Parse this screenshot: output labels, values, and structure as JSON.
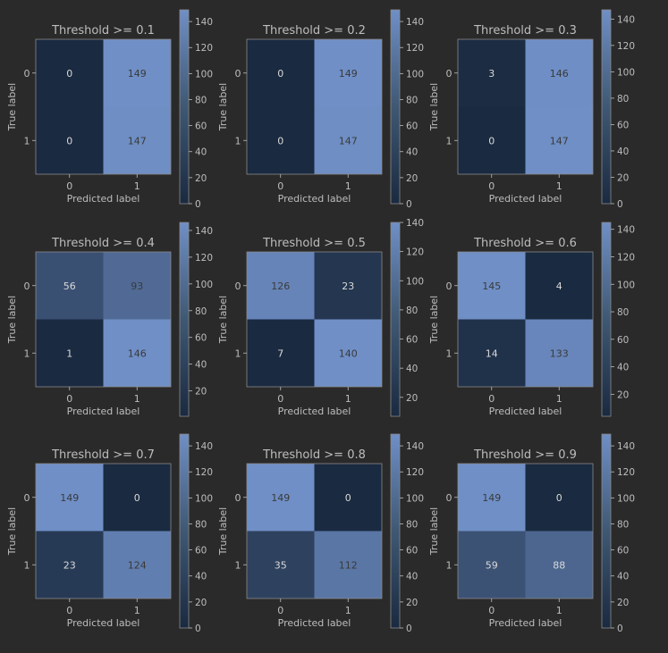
{
  "figure": {
    "background": "#2a2a2a",
    "text_color": "#bdbdbd",
    "cell_text_color": "#d9d9d9",
    "cell_text_dark": "#3a3a3a",
    "cmap": {
      "low": "#1a2a40",
      "high": "#6f8fc6"
    }
  },
  "chart_data": [
    {
      "type": "heatmap",
      "title": "Threshold >= 0.1",
      "xlabel": "Predicted label",
      "ylabel": "True label",
      "x_ticks": [
        "0",
        "1"
      ],
      "y_ticks": [
        "0",
        "1"
      ],
      "matrix": [
        [
          0,
          149
        ],
        [
          0,
          147
        ]
      ],
      "vmin": 0,
      "vmax": 149,
      "colorbar_ticks": [
        "0",
        "20",
        "40",
        "60",
        "80",
        "100",
        "120",
        "140"
      ]
    },
    {
      "type": "heatmap",
      "title": "Threshold >= 0.2",
      "xlabel": "Predicted label",
      "ylabel": "True label",
      "x_ticks": [
        "0",
        "1"
      ],
      "y_ticks": [
        "0",
        "1"
      ],
      "matrix": [
        [
          0,
          149
        ],
        [
          0,
          147
        ]
      ],
      "vmin": 0,
      "vmax": 149,
      "colorbar_ticks": [
        "0",
        "20",
        "40",
        "60",
        "80",
        "100",
        "120",
        "140"
      ]
    },
    {
      "type": "heatmap",
      "title": "Threshold >= 0.3",
      "xlabel": "Predicted label",
      "ylabel": "True label",
      "x_ticks": [
        "0",
        "1"
      ],
      "y_ticks": [
        "0",
        "1"
      ],
      "matrix": [
        [
          3,
          146
        ],
        [
          0,
          147
        ]
      ],
      "vmin": 0,
      "vmax": 147,
      "colorbar_ticks": [
        "0",
        "20",
        "40",
        "60",
        "80",
        "100",
        "120",
        "140"
      ]
    },
    {
      "type": "heatmap",
      "title": "Threshold >= 0.4",
      "xlabel": "Predicted label",
      "ylabel": "True label",
      "x_ticks": [
        "0",
        "1"
      ],
      "y_ticks": [
        "0",
        "1"
      ],
      "matrix": [
        [
          56,
          93
        ],
        [
          1,
          146
        ]
      ],
      "vmin": 1,
      "vmax": 146,
      "colorbar_ticks": [
        "20",
        "40",
        "60",
        "80",
        "100",
        "120",
        "140"
      ]
    },
    {
      "type": "heatmap",
      "title": "Threshold >= 0.5",
      "xlabel": "Predicted label",
      "ylabel": "True label",
      "x_ticks": [
        "0",
        "1"
      ],
      "y_ticks": [
        "0",
        "1"
      ],
      "matrix": [
        [
          126,
          23
        ],
        [
          7,
          140
        ]
      ],
      "vmin": 7,
      "vmax": 140,
      "colorbar_ticks": [
        "20",
        "40",
        "60",
        "80",
        "100",
        "120",
        "140"
      ]
    },
    {
      "type": "heatmap",
      "title": "Threshold >= 0.6",
      "xlabel": "Predicted label",
      "ylabel": "True label",
      "x_ticks": [
        "0",
        "1"
      ],
      "y_ticks": [
        "0",
        "1"
      ],
      "matrix": [
        [
          145,
          4
        ],
        [
          14,
          133
        ]
      ],
      "vmin": 4,
      "vmax": 145,
      "colorbar_ticks": [
        "20",
        "40",
        "60",
        "80",
        "100",
        "120",
        "140"
      ]
    },
    {
      "type": "heatmap",
      "title": "Threshold >= 0.7",
      "xlabel": "Predicted label",
      "ylabel": "True label",
      "x_ticks": [
        "0",
        "1"
      ],
      "y_ticks": [
        "0",
        "1"
      ],
      "matrix": [
        [
          149,
          0
        ],
        [
          23,
          124
        ]
      ],
      "vmin": 0,
      "vmax": 149,
      "colorbar_ticks": [
        "0",
        "20",
        "40",
        "60",
        "80",
        "100",
        "120",
        "140"
      ]
    },
    {
      "type": "heatmap",
      "title": "Threshold >= 0.8",
      "xlabel": "Predicted label",
      "ylabel": "True label",
      "x_ticks": [
        "0",
        "1"
      ],
      "y_ticks": [
        "0",
        "1"
      ],
      "matrix": [
        [
          149,
          0
        ],
        [
          35,
          112
        ]
      ],
      "vmin": 0,
      "vmax": 149,
      "colorbar_ticks": [
        "0",
        "20",
        "40",
        "60",
        "80",
        "100",
        "120",
        "140"
      ]
    },
    {
      "type": "heatmap",
      "title": "Threshold >= 0.9",
      "xlabel": "Predicted label",
      "ylabel": "True label",
      "x_ticks": [
        "0",
        "1"
      ],
      "y_ticks": [
        "0",
        "1"
      ],
      "matrix": [
        [
          149,
          0
        ],
        [
          59,
          88
        ]
      ],
      "vmin": 0,
      "vmax": 149,
      "colorbar_ticks": [
        "0",
        "20",
        "40",
        "60",
        "80",
        "100",
        "120",
        "140"
      ]
    }
  ]
}
